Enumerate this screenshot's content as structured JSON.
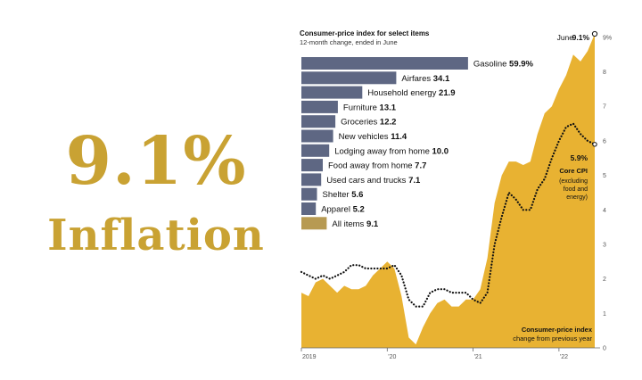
{
  "headline": {
    "big": "9.1%",
    "sub": "Inflation"
  },
  "colors": {
    "headline_gold": "#c9a233",
    "area_fill": "#e8b232",
    "bar_fill": "#5e6783",
    "all_items_bar": "#b79a52",
    "core_line": "#111111",
    "axis_text": "#555555"
  },
  "chart_data": [
    {
      "type": "bar",
      "orientation": "horizontal",
      "title": "Consumer-price index for select items",
      "subtitle": "12-month change, ended in June",
      "unit": "%",
      "categories": [
        "Gasoline",
        "Airfares",
        "Household energy",
        "Furniture",
        "Groceries",
        "New vehicles",
        "Lodging away from home",
        "Food away from home",
        "Used cars and trucks",
        "Shelter",
        "Apparel",
        "All items"
      ],
      "values": [
        59.9,
        34.1,
        21.9,
        13.1,
        12.2,
        11.4,
        10.0,
        7.7,
        7.1,
        5.6,
        5.2,
        9.1
      ],
      "value_labels": [
        "59.9%",
        "34.1",
        "21.9",
        "13.1",
        "12.2",
        "11.4",
        "10.0",
        "7.7",
        "7.1",
        "5.6",
        "5.2",
        "9.1"
      ],
      "highlight": "All items"
    },
    {
      "type": "area",
      "x_ticks": [
        "2019",
        "'20",
        "'21",
        "'22"
      ],
      "y_ticks": [
        0,
        1,
        2,
        3,
        4,
        5,
        6,
        7,
        8,
        9
      ],
      "y_top_label": "9%",
      "ylim": [
        0,
        9.1
      ],
      "grid": false,
      "series": [
        {
          "name": "Consumer-price index",
          "caption": "change from previous year",
          "style": "area",
          "end_label": "June",
          "end_value": "9.1%",
          "points": [
            [
              "2019-01",
              1.6
            ],
            [
              "2019-02",
              1.5
            ],
            [
              "2019-03",
              1.9
            ],
            [
              "2019-04",
              2.0
            ],
            [
              "2019-05",
              1.8
            ],
            [
              "2019-06",
              1.6
            ],
            [
              "2019-07",
              1.8
            ],
            [
              "2019-08",
              1.7
            ],
            [
              "2019-09",
              1.7
            ],
            [
              "2019-10",
              1.8
            ],
            [
              "2019-11",
              2.1
            ],
            [
              "2019-12",
              2.3
            ],
            [
              "2020-01",
              2.5
            ],
            [
              "2020-02",
              2.3
            ],
            [
              "2020-03",
              1.5
            ],
            [
              "2020-04",
              0.3
            ],
            [
              "2020-05",
              0.1
            ],
            [
              "2020-06",
              0.6
            ],
            [
              "2020-07",
              1.0
            ],
            [
              "2020-08",
              1.3
            ],
            [
              "2020-09",
              1.4
            ],
            [
              "2020-10",
              1.2
            ],
            [
              "2020-11",
              1.2
            ],
            [
              "2020-12",
              1.4
            ],
            [
              "2021-01",
              1.4
            ],
            [
              "2021-02",
              1.7
            ],
            [
              "2021-03",
              2.6
            ],
            [
              "2021-04",
              4.2
            ],
            [
              "2021-05",
              5.0
            ],
            [
              "2021-06",
              5.4
            ],
            [
              "2021-07",
              5.4
            ],
            [
              "2021-08",
              5.3
            ],
            [
              "2021-09",
              5.4
            ],
            [
              "2021-10",
              6.2
            ],
            [
              "2021-11",
              6.8
            ],
            [
              "2021-12",
              7.0
            ],
            [
              "2022-01",
              7.5
            ],
            [
              "2022-02",
              7.9
            ],
            [
              "2022-03",
              8.5
            ],
            [
              "2022-04",
              8.3
            ],
            [
              "2022-05",
              8.6
            ],
            [
              "2022-06",
              9.1
            ]
          ]
        },
        {
          "name": "Core CPI",
          "caption": "(excluding food and energy)",
          "style": "dotted-line",
          "end_value": "5.9%",
          "points": [
            [
              "2019-01",
              2.2
            ],
            [
              "2019-02",
              2.1
            ],
            [
              "2019-03",
              2.0
            ],
            [
              "2019-04",
              2.1
            ],
            [
              "2019-05",
              2.0
            ],
            [
              "2019-06",
              2.1
            ],
            [
              "2019-07",
              2.2
            ],
            [
              "2019-08",
              2.4
            ],
            [
              "2019-09",
              2.4
            ],
            [
              "2019-10",
              2.3
            ],
            [
              "2019-11",
              2.3
            ],
            [
              "2019-12",
              2.3
            ],
            [
              "2020-01",
              2.3
            ],
            [
              "2020-02",
              2.4
            ],
            [
              "2020-03",
              2.1
            ],
            [
              "2020-04",
              1.4
            ],
            [
              "2020-05",
              1.2
            ],
            [
              "2020-06",
              1.2
            ],
            [
              "2020-07",
              1.6
            ],
            [
              "2020-08",
              1.7
            ],
            [
              "2020-09",
              1.7
            ],
            [
              "2020-10",
              1.6
            ],
            [
              "2020-11",
              1.6
            ],
            [
              "2020-12",
              1.6
            ],
            [
              "2021-01",
              1.4
            ],
            [
              "2021-02",
              1.3
            ],
            [
              "2021-03",
              1.6
            ],
            [
              "2021-04",
              3.0
            ],
            [
              "2021-05",
              3.8
            ],
            [
              "2021-06",
              4.5
            ],
            [
              "2021-07",
              4.3
            ],
            [
              "2021-08",
              4.0
            ],
            [
              "2021-09",
              4.0
            ],
            [
              "2021-10",
              4.6
            ],
            [
              "2021-11",
              4.9
            ],
            [
              "2021-12",
              5.5
            ],
            [
              "2022-01",
              6.0
            ],
            [
              "2022-02",
              6.4
            ],
            [
              "2022-03",
              6.5
            ],
            [
              "2022-04",
              6.2
            ],
            [
              "2022-05",
              6.0
            ],
            [
              "2022-06",
              5.9
            ]
          ]
        }
      ]
    }
  ]
}
